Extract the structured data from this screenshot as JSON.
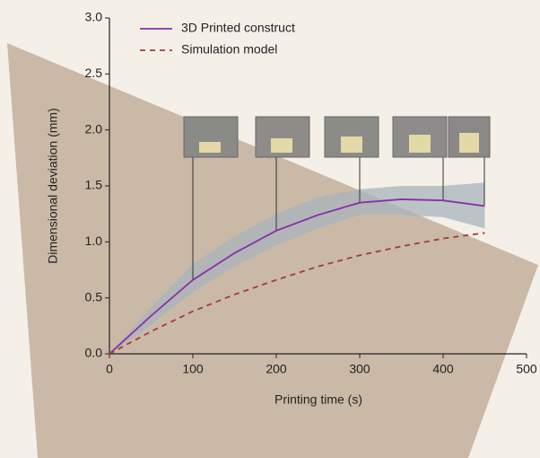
{
  "chart_data": {
    "type": "line",
    "x_label": "Printing time (s)",
    "y_label": "Dimensional deviation (mm)",
    "x": [
      0,
      50,
      100,
      150,
      200,
      250,
      300,
      350,
      400,
      450
    ],
    "series": [
      {
        "name": "3D Printed construct",
        "color": "#8b2fa8",
        "dash": false,
        "values": [
          0,
          0.34,
          0.66,
          0.9,
          1.1,
          1.24,
          1.35,
          1.38,
          1.37,
          1.32
        ],
        "lower": [
          0,
          0.26,
          0.55,
          0.78,
          0.97,
          1.12,
          1.24,
          1.24,
          1.22,
          1.12
        ],
        "upper": [
          0,
          0.42,
          0.8,
          1.05,
          1.25,
          1.4,
          1.47,
          1.5,
          1.5,
          1.53
        ],
        "band_color": "#a8b4bc"
      },
      {
        "name": "Simulation model",
        "color": "#a33a3a",
        "dash": true,
        "values": [
          0,
          0.2,
          0.38,
          0.53,
          0.66,
          0.78,
          0.88,
          0.96,
          1.03,
          1.08
        ]
      }
    ],
    "xlim": [
      0,
      500
    ],
    "xticks": [
      0,
      100,
      200,
      300,
      400,
      500
    ],
    "ylim": [
      0,
      3
    ],
    "yticks": [
      {
        "value": 0,
        "label": "0.0"
      },
      {
        "value": 0.5,
        "label": "0.5"
      },
      {
        "value": 1,
        "label": "1.0"
      },
      {
        "value": 1.5,
        "label": "1.5"
      },
      {
        "value": 2,
        "label": "2.0"
      },
      {
        "value": 2.5,
        "label": "2.5"
      },
      {
        "value": 3,
        "label": "3.0"
      }
    ]
  }
}
